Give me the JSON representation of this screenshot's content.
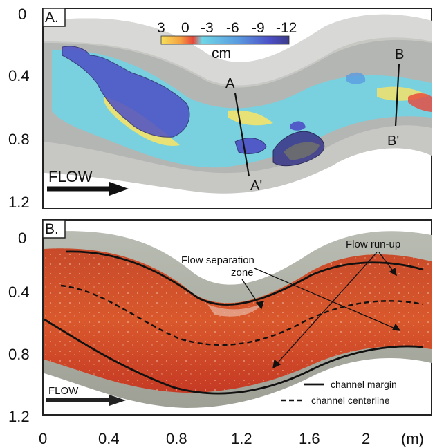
{
  "panel_a": {
    "label": "A.",
    "y_ticks": [
      "0",
      "0.4",
      "0.8",
      "1.2"
    ],
    "colorbar": {
      "ticks": [
        "3",
        "0",
        "-3",
        "-6",
        "-9",
        "-12"
      ],
      "unit": "cm",
      "colors": [
        "#f6e05a",
        "#f5a142",
        "#e8463a",
        "#6fd6e6",
        "#5a9be0",
        "#4c4fc6",
        "#3d3b8a"
      ]
    },
    "sections": {
      "a_top": "A",
      "a_bottom": "A'",
      "b_top": "B",
      "b_bottom": "B'"
    },
    "flow_label": "FLOW"
  },
  "panel_b": {
    "label": "B.",
    "y_ticks": [
      "0",
      "0.4",
      "0.8",
      "1.2"
    ],
    "x_ticks": [
      "0",
      "0.4",
      "0.8",
      "1.2",
      "1.6",
      "2"
    ],
    "x_unit": "(m)",
    "annotations": {
      "separation_line1": "Flow separation",
      "separation_line2": "zone",
      "runup": "Flow run-up"
    },
    "flow_label": "FLOW",
    "legend": {
      "margin": "channel margin",
      "centerline": "channel centerline"
    }
  }
}
